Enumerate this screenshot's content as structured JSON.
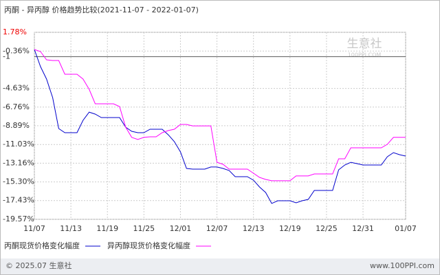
{
  "chart_data": {
    "type": "line",
    "title": "丙酮 - 异丙醇 价格趋势比较(2021-11-07 - 2022-01-07)",
    "watermark": "生意社",
    "watermark_url": "100PPI.COM",
    "footer_left": "© 2025.07 生意社",
    "footer_right": "www.100PPI.com",
    "x": [
      "11/07",
      "11/08",
      "11/09",
      "11/10",
      "11/11",
      "11/12",
      "11/13",
      "11/14",
      "11/15",
      "11/16",
      "11/17",
      "11/18",
      "11/19",
      "11/20",
      "11/21",
      "11/22",
      "11/23",
      "11/24",
      "11/25",
      "11/26",
      "11/27",
      "11/28",
      "11/29",
      "11/30",
      "12/01",
      "12/02",
      "12/03",
      "12/04",
      "12/05",
      "12/06",
      "12/07",
      "12/08",
      "12/09",
      "12/10",
      "12/11",
      "12/12",
      "12/13",
      "12/14",
      "12/15",
      "12/16",
      "12/17",
      "12/18",
      "12/19",
      "12/20",
      "12/21",
      "12/22",
      "12/23",
      "12/24",
      "12/25",
      "12/26",
      "12/27",
      "12/28",
      "12/29",
      "12/30",
      "12/31",
      "01/01",
      "01/02",
      "01/03",
      "01/04",
      "01/05",
      "01/06",
      "01/07"
    ],
    "xlim": [
      "11/07",
      "01/07"
    ],
    "xticks": [
      "11/07",
      "11/13",
      "11/19",
      "11/25",
      "12/01",
      "12/07",
      "12/13",
      "12/19",
      "12/25",
      "12/31",
      "01/07"
    ],
    "ylim": [
      -19.57,
      1.78
    ],
    "yticks": [
      {
        "value": 1.78,
        "label": "1.78%"
      },
      {
        "value": -0.36,
        "label": "-0.36%"
      },
      -1,
      {
        "value": -4.63,
        "label": "-4.63%"
      },
      {
        "value": -6.76,
        "label": "-6.76%"
      },
      {
        "value": -8.89,
        "label": "-8.89%"
      },
      {
        "value": -11.03,
        "label": "-11.03%"
      },
      {
        "value": -13.16,
        "label": "-13.16%"
      },
      {
        "value": -15.3,
        "label": "-15.30%"
      },
      {
        "value": -17.43,
        "label": "-17.43%"
      },
      {
        "value": -19.57,
        "label": "-19.57%"
      }
    ],
    "grid": true,
    "series": [
      {
        "name": "丙酮现货价格变化幅度",
        "color": "#0000cc",
        "values": [
          -0.18,
          -2.14,
          -3.56,
          -5.68,
          -9.21,
          -9.68,
          -9.68,
          -9.68,
          -8.27,
          -7.33,
          -7.56,
          -7.95,
          -7.95,
          -7.95,
          -7.95,
          -9.05,
          -9.52,
          -9.68,
          -9.68,
          -9.29,
          -9.29,
          -9.29,
          -9.92,
          -10.7,
          -11.88,
          -13.76,
          -13.84,
          -13.84,
          -13.84,
          -13.6,
          -13.6,
          -13.76,
          -14,
          -14.7,
          -14.7,
          -14.7,
          -15.1,
          -15.88,
          -16.51,
          -17.76,
          -17.45,
          -17.45,
          -17.45,
          -17.69,
          -17.45,
          -17.29,
          -16.27,
          -16.27,
          -16.27,
          -16.27,
          -13.92,
          -13.37,
          -13.06,
          -13.21,
          -13.37,
          -13.37,
          -13.37,
          -13.37,
          -12.43,
          -11.96,
          -12.19,
          -12.35
        ]
      },
      {
        "name": "异丙醇现货价格变化幅度",
        "color": "#ff00ff",
        "values": [
          -0.18,
          -0.42,
          -1.36,
          -1.44,
          -1.44,
          -3.01,
          -3.01,
          -3.01,
          -3.56,
          -4.73,
          -6.38,
          -6.38,
          -6.38,
          -6.38,
          -6.7,
          -9.05,
          -10.21,
          -10.46,
          -10.21,
          -10.15,
          -10.15,
          -9.68,
          -9.44,
          -9.29,
          -8.74,
          -8.74,
          -8.9,
          -8.9,
          -8.9,
          -8.9,
          -13.06,
          -13.29,
          -13.84,
          -13.84,
          -13.84,
          -13.84,
          -14.31,
          -14.78,
          -15.02,
          -15.17,
          -15.17,
          -15.17,
          -15.17,
          -14.62,
          -14.62,
          -14.62,
          -14.39,
          -14.39,
          -14.39,
          -14.39,
          -12.66,
          -12.66,
          -11.41,
          -11.41,
          -11.41,
          -11.41,
          -11.41,
          -11.41,
          -11.01,
          -10.21,
          -10.21,
          -10.21
        ]
      }
    ]
  }
}
